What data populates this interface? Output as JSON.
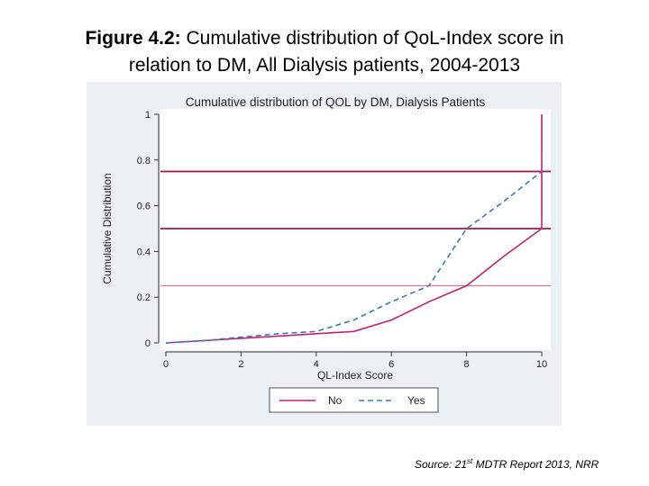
{
  "figure": {
    "label": "Figure 4.2:",
    "caption_line1": "Cumulative distribution of QoL-Index score in",
    "caption_line2": "relation to DM, All Dialysis patients, 2004-2013"
  },
  "source": {
    "prefix": "Source: 21",
    "sup": "st",
    "suffix": " MDTR Report 2013, NRR"
  },
  "colors": {
    "panel_bg": "#eaf0f3",
    "plot_bg": "#ffffff",
    "no_line": "#cc1f6b",
    "yes_line": "#3a7bbf",
    "ref_line_dark": "#a0154a",
    "ref_line_light": "#d47a96"
  },
  "chart_data": {
    "type": "line",
    "title": "Cumulative distribution of QOL by DM, Dialysis Patients",
    "xlabel": "QL-Index Score",
    "ylabel": "Cumulative Distribution",
    "xlim": [
      0,
      10
    ],
    "ylim": [
      0,
      1
    ],
    "x_ticks": [
      "0",
      "2",
      "4",
      "6",
      "8",
      "10"
    ],
    "y_ticks": [
      "0",
      "0.2",
      "0.4",
      "0.6",
      "0.8",
      "1"
    ],
    "grid": false,
    "legend_position": "bottom",
    "reference_lines_y": [
      0.25,
      0.5,
      0.75
    ],
    "series": [
      {
        "name": "No",
        "style": "solid",
        "x": [
          0,
          1,
          2,
          3,
          4,
          5,
          6,
          7,
          8,
          9,
          10,
          10
        ],
        "y": [
          0,
          0.01,
          0.02,
          0.03,
          0.04,
          0.05,
          0.1,
          0.18,
          0.25,
          0.38,
          0.5,
          1.0
        ]
      },
      {
        "name": "Yes",
        "style": "dashed",
        "x": [
          0,
          1,
          2,
          3,
          4,
          5,
          6,
          7,
          8,
          9,
          10
        ],
        "y": [
          0,
          0.01,
          0.025,
          0.04,
          0.05,
          0.1,
          0.18,
          0.25,
          0.5,
          0.62,
          0.75
        ]
      }
    ]
  }
}
